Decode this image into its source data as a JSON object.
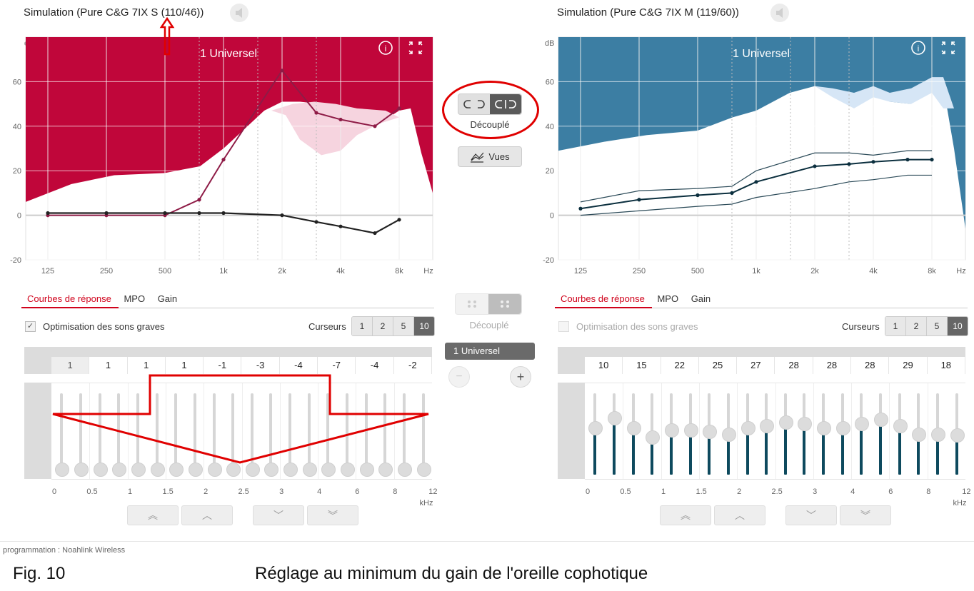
{
  "left": {
    "title": "Simulation (Pure C&G 7IX S (110/46))",
    "program": "1 Universel",
    "tabs": [
      "Courbes de réponse",
      "MPO",
      "Gain"
    ],
    "optimisation": "Optimisation des sons graves",
    "cursors_label": "Curseurs",
    "cursors": [
      "1",
      "2",
      "5",
      "10"
    ],
    "cursor_selected": "10",
    "gains": [
      "1",
      "1",
      "1",
      "1",
      "-1",
      "-3",
      "-4",
      "-7",
      "-4",
      "-2"
    ]
  },
  "right": {
    "title": "Simulation (Pure C&G 7IX M (119/60))",
    "program": "1 Universel",
    "tabs": [
      "Courbes de réponse",
      "MPO",
      "Gain"
    ],
    "optimisation": "Optimisation des sons graves",
    "cursors_label": "Curseurs",
    "cursors": [
      "1",
      "2",
      "5",
      "10"
    ],
    "cursor_selected": "10",
    "gains": [
      "10",
      "15",
      "22",
      "25",
      "27",
      "28",
      "28",
      "28",
      "29",
      "18"
    ]
  },
  "chart": {
    "y_unit": "dB",
    "y_ticks": [
      "60",
      "40",
      "20",
      "0",
      "-20"
    ],
    "x_ticks": [
      "125",
      "250",
      "500",
      "1k",
      "2k",
      "4k",
      "8k"
    ],
    "x_unit": "Hz"
  },
  "slider_axis": {
    "ticks": [
      "0",
      "0.5",
      "1",
      "1.5",
      "2",
      "2.5",
      "3",
      "4",
      "6",
      "8",
      "12"
    ],
    "unit": "kHz"
  },
  "center": {
    "coupling_label": "Découplé",
    "coupling_label_2": "Découplé",
    "views_label": "Vues",
    "program_item": "1  Universel",
    "minus": "−",
    "plus": "+"
  },
  "footer": {
    "connection": "programmation : Noahlink Wireless",
    "fig": "Fig. 10",
    "caption": "Réglage au minimum du gain de l'oreille cophotique"
  },
  "chart_data": [
    {
      "type": "line",
      "name_ref": "left",
      "xlabel": "Hz",
      "ylabel": "dB",
      "ylim": [
        -20,
        80
      ],
      "categories": [
        "125",
        "250",
        "500",
        "750",
        "1k",
        "2k",
        "3k",
        "4k",
        "6k",
        "8k"
      ],
      "series": [
        {
          "values": [
            0,
            0,
            0,
            7,
            25,
            65,
            46,
            43,
            40,
            48
          ]
        },
        {
          "values": [
            1,
            1,
            1,
            1,
            1,
            0,
            -3,
            -5,
            -8,
            -2
          ]
        }
      ]
    },
    {
      "type": "line",
      "name_ref": "right",
      "xlabel": "Hz",
      "ylabel": "dB",
      "ylim": [
        -20,
        80
      ],
      "categories": [
        "125",
        "250",
        "500",
        "750",
        "1k",
        "2k",
        "3k",
        "4k",
        "6k",
        "8k"
      ],
      "series": [
        {
          "values": [
            3,
            7,
            9,
            10,
            15,
            22,
            23,
            24,
            25,
            25
          ]
        }
      ]
    }
  ],
  "colors": {
    "left_accent": "#c0063a",
    "right_accent": "#3c7ea3",
    "annotation_red": "#e00000",
    "slider_fill": "#0e4a5e"
  },
  "left_slider_levels": [
    0,
    0,
    0,
    0,
    0,
    0,
    0,
    0,
    0,
    0,
    0,
    0,
    0,
    0,
    0,
    0,
    0,
    0,
    0,
    0
  ],
  "right_slider_levels": [
    0.55,
    0.68,
    0.55,
    0.42,
    0.52,
    0.52,
    0.5,
    0.46,
    0.55,
    0.58,
    0.62,
    0.6,
    0.55,
    0.55,
    0.6,
    0.66,
    0.58,
    0.46,
    0.46,
    0.45
  ]
}
